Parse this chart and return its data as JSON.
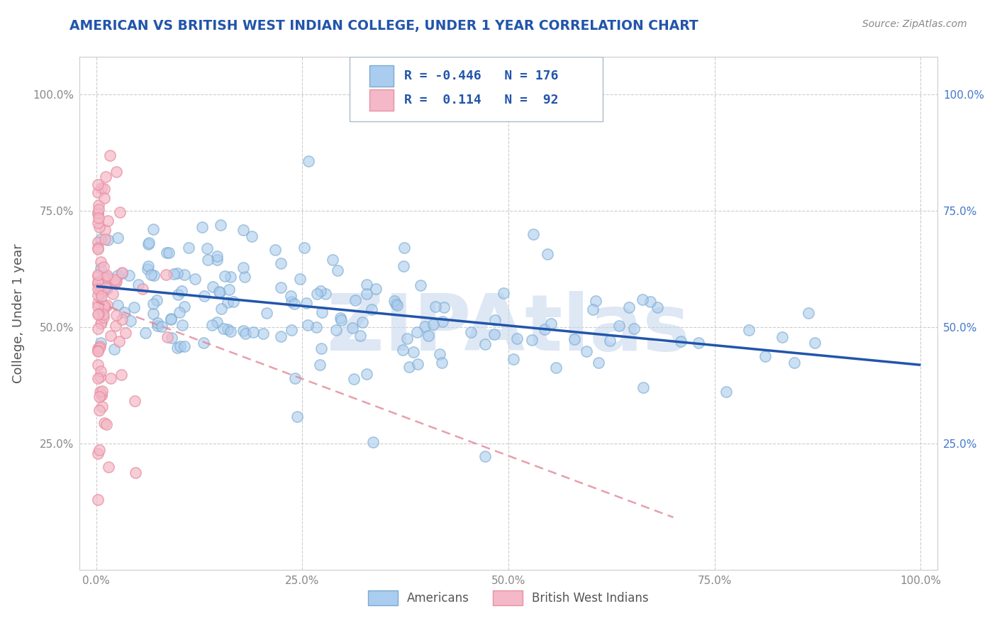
{
  "title": "AMERICAN VS BRITISH WEST INDIAN COLLEGE, UNDER 1 YEAR CORRELATION CHART",
  "source_text": "Source: ZipAtlas.com",
  "ylabel": "College, Under 1 year",
  "xlim": [
    -0.02,
    1.02
  ],
  "ylim": [
    -0.02,
    1.08
  ],
  "xticks": [
    0.0,
    0.25,
    0.5,
    0.75,
    1.0
  ],
  "yticks": [
    0.0,
    0.25,
    0.5,
    0.75,
    1.0
  ],
  "xtick_labels": [
    "0.0%",
    "25.0%",
    "50.0%",
    "75.0%",
    "100.0%"
  ],
  "ytick_labels_left": [
    "",
    "25.0%",
    "50.0%",
    "75.0%",
    "100.0%"
  ],
  "ytick_labels_right": [
    "",
    "25.0%",
    "50.0%",
    "75.0%",
    "100.0%"
  ],
  "R_american": -0.446,
  "N_american": 176,
  "R_british": 0.114,
  "N_british": 92,
  "american_fill_color": "#aaccee",
  "american_edge_color": "#7aaad0",
  "british_fill_color": "#f4b8c8",
  "british_edge_color": "#e890a0",
  "american_line_color": "#2255aa",
  "british_line_color": "#e08898",
  "watermark": "ZIPAtlas",
  "watermark_color": "#c8d8ee",
  "title_color": "#2255aa",
  "source_color": "#888888",
  "axis_label_color": "#555555",
  "tick_color": "#888888",
  "right_tick_color": "#4477cc",
  "grid_color": "#cccccc",
  "background_color": "#ffffff",
  "legend_box_color": "#ddddee",
  "legend_text_color": "#2255aa"
}
